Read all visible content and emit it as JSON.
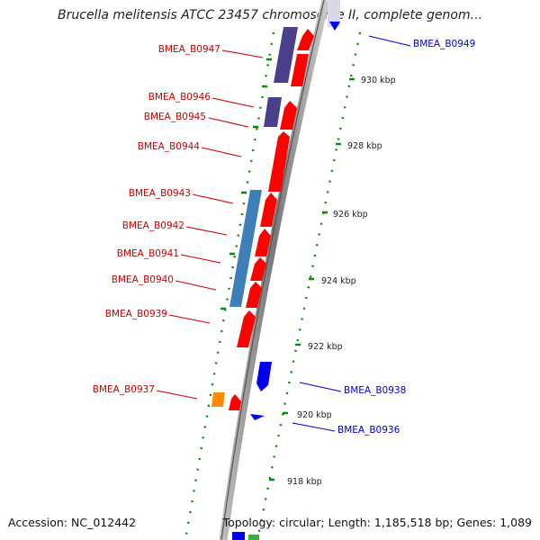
{
  "title": "Brucella melitensis ATCC 23457 chromosome II, complete genom...",
  "footer": {
    "accession": "Accession: NC_012442",
    "summary": "Topology: circular; Length: 1,185,518 bp; Genes: 1,089"
  },
  "colors": {
    "forward_gene": "#ff0000",
    "reverse_gene": "#0000ee",
    "operon_purple": "#4a3f8a",
    "operon_blue": "#3f7fb8",
    "orange_feature": "#ff8c00",
    "ticks": "#0a8a0a",
    "label_red": "#cc0000",
    "label_blue": "#0000cc"
  },
  "scale_labels": [
    "930 kbp",
    "928 kbp",
    "926 kbp",
    "924 kbp",
    "922 kbp",
    "920 kbp",
    "918 kbp"
  ],
  "gene_labels_left": [
    "BMEA_B0947",
    "BMEA_B0946",
    "BMEA_B0945",
    "BMEA_B0944",
    "BMEA_B0943",
    "BMEA_B0942",
    "BMEA_B0941",
    "BMEA_B0940",
    "BMEA_B0939",
    "BMEA_B0937"
  ],
  "gene_labels_right": [
    "BMEA_B0949",
    "BMEA_B0938",
    "BMEA_B0936"
  ]
}
